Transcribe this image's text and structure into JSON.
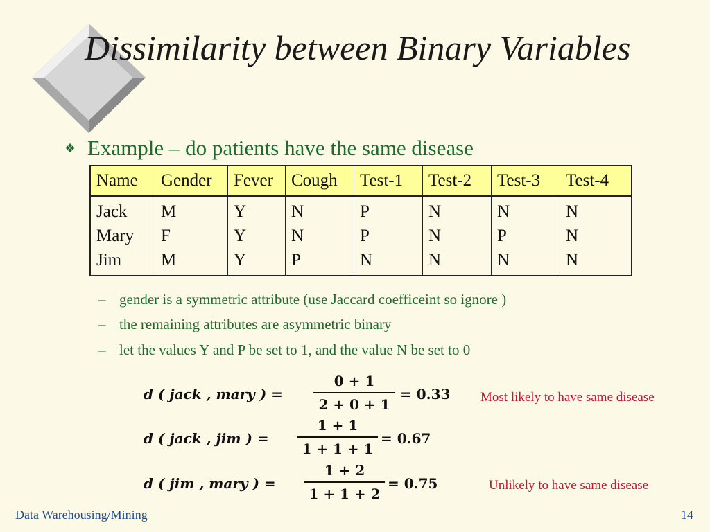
{
  "slide": {
    "title": "Dissimilarity between Binary Variables",
    "bullet": "Example – do patients have the same disease",
    "bullet_icon": "diamond-bullet-icon",
    "decoration_icon": "beveled-diamond-icon",
    "table": {
      "headers": [
        "Name",
        "Gender",
        "Fever",
        "Cough",
        "Test-1",
        "Test-2",
        "Test-3",
        "Test-4"
      ],
      "rows": [
        [
          "Jack",
          "M",
          "Y",
          "N",
          "P",
          "N",
          "N",
          "N"
        ],
        [
          "Mary",
          "F",
          "Y",
          "N",
          "P",
          "N",
          "P",
          "N"
        ],
        [
          "Jim",
          "M",
          "Y",
          "P",
          "N",
          "N",
          "N",
          "N"
        ]
      ]
    },
    "sub_bullets": [
      "gender is a symmetric attribute (use Jaccard coefficeint so ignore )",
      "the remaining attributes are asymmetric binary",
      "let the values Y and P be set to 1, and the value N be set to 0"
    ],
    "equations": [
      {
        "lhs": "d ( jack , mary ) =",
        "num": "0 + 1",
        "den": "2 + 0 + 1",
        "result": "= 0.33"
      },
      {
        "lhs": "d ( jack , jim ) =",
        "num": "1 + 1",
        "den": "1 + 1 + 1",
        "result": "= 0.67"
      },
      {
        "lhs": "d ( jim , mary ) =",
        "num": "1 + 2",
        "den": "1 + 1 + 2",
        "result": "= 0.75"
      }
    ],
    "notes": {
      "likely": "Most likely to have same disease",
      "unlikely": "Unlikely to have same disease"
    },
    "footer": {
      "course": "Data Warehousing/Mining",
      "page_number": "14"
    }
  },
  "colors": {
    "background": "#fdf9e7",
    "bullet_text": "#1f6b2f",
    "header_fill": "#ffff99",
    "note_text": "#c4143c",
    "footer_text": "#1f4f8f"
  }
}
